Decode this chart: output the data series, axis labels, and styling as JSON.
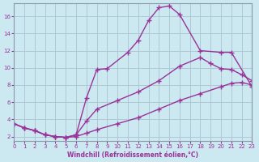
{
  "xlabel": "Windchill (Refroidissement éolien,°C)",
  "background_color": "#cce8f0",
  "line_color": "#993399",
  "grid_color": "#b0c8d4",
  "xlim": [
    0,
    23
  ],
  "ylim": [
    1.5,
    17.5
  ],
  "xticks": [
    0,
    1,
    2,
    3,
    4,
    5,
    6,
    7,
    8,
    9,
    10,
    11,
    12,
    13,
    14,
    15,
    16,
    17,
    18,
    19,
    20,
    21,
    22,
    23
  ],
  "yticks": [
    2,
    4,
    6,
    8,
    10,
    12,
    14,
    16
  ],
  "s1_x": [
    0,
    1,
    2,
    3,
    4,
    5,
    6,
    7,
    8,
    9,
    11,
    12,
    13,
    14,
    15,
    16,
    18,
    20,
    21,
    23
  ],
  "s1_y": [
    3.5,
    3.0,
    2.7,
    2.2,
    2.0,
    1.9,
    2.2,
    6.5,
    9.8,
    9.9,
    11.8,
    13.2,
    15.5,
    17.0,
    17.2,
    16.2,
    12.0,
    11.8,
    11.8,
    7.8
  ],
  "s2_x": [
    0,
    1,
    2,
    3,
    4,
    5,
    6,
    7,
    8,
    10,
    12,
    14,
    16,
    18,
    19,
    20,
    21,
    22,
    23
  ],
  "s2_y": [
    3.5,
    3.0,
    2.7,
    2.2,
    2.0,
    1.9,
    2.2,
    3.8,
    5.2,
    6.2,
    7.2,
    8.5,
    10.2,
    11.2,
    10.5,
    9.9,
    9.8,
    9.2,
    8.5
  ],
  "s3_x": [
    0,
    1,
    2,
    3,
    4,
    5,
    6,
    7,
    8,
    10,
    12,
    14,
    16,
    18,
    20,
    21,
    22,
    23
  ],
  "s3_y": [
    3.5,
    3.0,
    2.7,
    2.2,
    2.0,
    1.9,
    2.0,
    2.4,
    2.8,
    3.5,
    4.2,
    5.2,
    6.2,
    7.0,
    7.8,
    8.2,
    8.3,
    8.0
  ]
}
